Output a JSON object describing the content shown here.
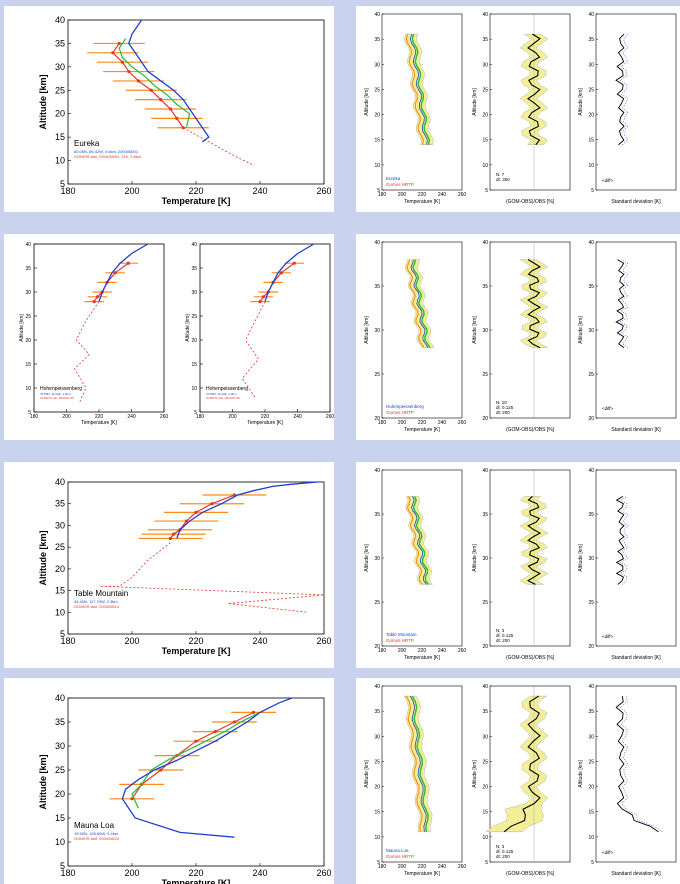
{
  "colors": {
    "lidar": "#1f3fd0",
    "gomos": "#e8342a",
    "model": "#2fbf3a",
    "gomos_fill": "#ff8c1a",
    "mean": "#000000",
    "shade": "#f3ef98"
  },
  "rows": [
    {
      "station": "Eureka",
      "meta_lidar": "80.05N, 86.42W, 0.6km, 2004/08/01",
      "meta_gomos": "GOMOS star, 2004/08/01, 21h, 0.6km",
      "temp_axis": {
        "ticks": [
          180,
          200,
          220,
          240,
          260
        ],
        "label": "Temperature [K]"
      },
      "alt_axis": {
        "ticks": [
          5,
          10,
          15,
          20,
          25,
          30,
          35,
          40
        ],
        "label": "Altitude [km]"
      },
      "compare": {
        "legend_lidar": "Eureka",
        "legend_gomos": "Gomos HRTP",
        "stats": [
          "N: 7",
          "dt: 300"
        ],
        "diff_label": "(GOM-OBS)/OBS [%]",
        "std_label": "Standard deviation [K]",
        "std_legend": "<diff>"
      }
    },
    {
      "station": "Hohenpeissenberg",
      "meta_lidar": "47.80N, 11.02E, 1.0km",
      "meta_gomos": "GOMOS star, 2004/07/15",
      "temp_axis": {
        "ticks": [
          180,
          200,
          220,
          240,
          260
        ],
        "label": "Temperature [K]"
      },
      "alt_axis": {
        "ticks": [
          5,
          10,
          15,
          20,
          25,
          30,
          35,
          40
        ],
        "label": "Altitude [km]"
      },
      "compare": {
        "legend_lidar": "Hohenpeissenberg",
        "legend_gomos": "Gomos HRTP",
        "stats": [
          "N: 10",
          "dl: 0.125",
          "dt: 200"
        ],
        "diff_label": "(GOM-OBS)/OBS [%]",
        "std_label": "Standard deviation [K]",
        "std_legend": "<diff>"
      }
    },
    {
      "station": "Table Mountain",
      "meta_lidar": "34.40N, 117.70W, 2.3km",
      "meta_gomos": "GOMOS star, 2004/08/14",
      "temp_axis": {
        "ticks": [
          180,
          200,
          220,
          240,
          260
        ],
        "label": "Temperature [K]"
      },
      "alt_axis": {
        "ticks": [
          5,
          10,
          15,
          20,
          25,
          30,
          35,
          40
        ],
        "label": "Altitude [km]"
      },
      "compare": {
        "legend_lidar": "Table Mountain",
        "legend_gomos": "Gomos HRTP",
        "stats": [
          "N: 3",
          "dl: 0.125",
          "dt: 200"
        ],
        "diff_label": "(GOM-OBS)/OBS [%]",
        "std_label": "Standard deviation [K]",
        "std_legend": "<diff>"
      }
    },
    {
      "station": "Mauna Loa",
      "meta_lidar": "19.50N, 155.60W, 3.4km",
      "meta_gomos": "GOMOS star, 2004/08/20",
      "temp_axis": {
        "ticks": [
          180,
          200,
          220,
          240,
          260
        ],
        "label": "Temperature [K]"
      },
      "alt_axis": {
        "ticks": [
          5,
          10,
          15,
          20,
          25,
          30,
          35,
          40
        ],
        "label": "Altitude [km]"
      },
      "compare": {
        "legend_lidar": "Mauna Loa",
        "legend_gomos": "Gomos HRTP",
        "stats": [
          "N: 3",
          "dl: 0.125",
          "dt: 200"
        ],
        "diff_label": "(GOM-OBS)/OBS [%]",
        "std_label": "Standard deviation [K]",
        "std_legend": "<diff>"
      }
    }
  ],
  "chart_data": [
    {
      "type": "line",
      "panel": "Eureka temperature profile",
      "xlabel": "Temperature [K]",
      "ylabel": "Altitude [km]",
      "xlim": [
        180,
        260
      ],
      "ylim": [
        5,
        40
      ],
      "series": [
        {
          "name": "lidar",
          "x": [
            203,
            200,
            199,
            201,
            203,
            205,
            209,
            213,
            216,
            218,
            220,
            222,
            224,
            222
          ],
          "y": [
            40,
            37,
            35,
            33,
            31,
            29,
            27,
            25,
            23,
            21,
            19,
            17,
            15,
            14
          ]
        },
        {
          "name": "gomos",
          "x": [
            196,
            194,
            197,
            199,
            202,
            206,
            209,
            212,
            214,
            216
          ],
          "y": [
            35,
            33,
            31,
            29,
            27,
            25,
            23,
            21,
            19,
            17
          ]
        },
        {
          "name": "model",
          "x": [
            198,
            196,
            197,
            200,
            204,
            207,
            211,
            214,
            218,
            217
          ],
          "y": [
            36,
            34,
            32,
            30,
            28,
            26,
            24,
            22,
            20,
            17
          ]
        }
      ]
    },
    {
      "type": "line",
      "panel": "Hohenpeissenberg temperature profile",
      "xlabel": "Temperature [K]",
      "ylabel": "Altitude [km]",
      "xlim": [
        180,
        260
      ],
      "ylim": [
        5,
        40
      ],
      "series": [
        {
          "name": "lidar",
          "x": [
            250,
            240,
            233,
            228,
            225,
            222,
            220
          ],
          "y": [
            40,
            38,
            36,
            34,
            32,
            30,
            28
          ]
        },
        {
          "name": "gomos",
          "x": [
            238,
            230,
            225,
            222,
            219,
            217
          ],
          "y": [
            36,
            34,
            32,
            30,
            29,
            28
          ]
        }
      ]
    },
    {
      "type": "line",
      "panel": "Table Mountain temperature profile",
      "xlabel": "Temperature [K]",
      "ylabel": "Altitude [km]",
      "xlim": [
        180,
        260
      ],
      "ylim": [
        5,
        40
      ],
      "series": [
        {
          "name": "lidar",
          "x": [
            258,
            250,
            244,
            238,
            233,
            228,
            222,
            218,
            215,
            214
          ],
          "y": [
            40,
            39.5,
            39,
            38,
            37,
            35,
            33,
            31,
            29,
            27
          ]
        },
        {
          "name": "gomos",
          "x": [
            232,
            225,
            220,
            217,
            215,
            213,
            212
          ],
          "y": [
            37,
            35,
            33,
            31,
            29,
            28,
            27
          ]
        }
      ]
    },
    {
      "type": "line",
      "panel": "Mauna Loa temperature profile",
      "xlabel": "Temperature [K]",
      "ylabel": "Altitude [km]",
      "xlim": [
        180,
        260
      ],
      "ylim": [
        5,
        40
      ],
      "series": [
        {
          "name": "lidar",
          "x": [
            250,
            246,
            243,
            240,
            236,
            231,
            226,
            220,
            214,
            207,
            202,
            198,
            197,
            201,
            215,
            232
          ],
          "y": [
            40,
            39,
            38,
            37,
            35,
            33,
            31,
            29,
            27,
            25,
            23,
            21,
            19,
            15,
            12,
            11
          ]
        },
        {
          "name": "gomos",
          "x": [
            238,
            232,
            226,
            220,
            214,
            209,
            203,
            200
          ],
          "y": [
            37,
            35,
            33,
            31,
            28,
            25,
            22,
            19
          ]
        },
        {
          "name": "model",
          "x": [
            240,
            234,
            229,
            223,
            217,
            211,
            206,
            203,
            200,
            202
          ],
          "y": [
            37,
            35,
            33,
            31,
            29,
            27,
            25,
            22,
            20,
            17
          ]
        }
      ]
    }
  ]
}
